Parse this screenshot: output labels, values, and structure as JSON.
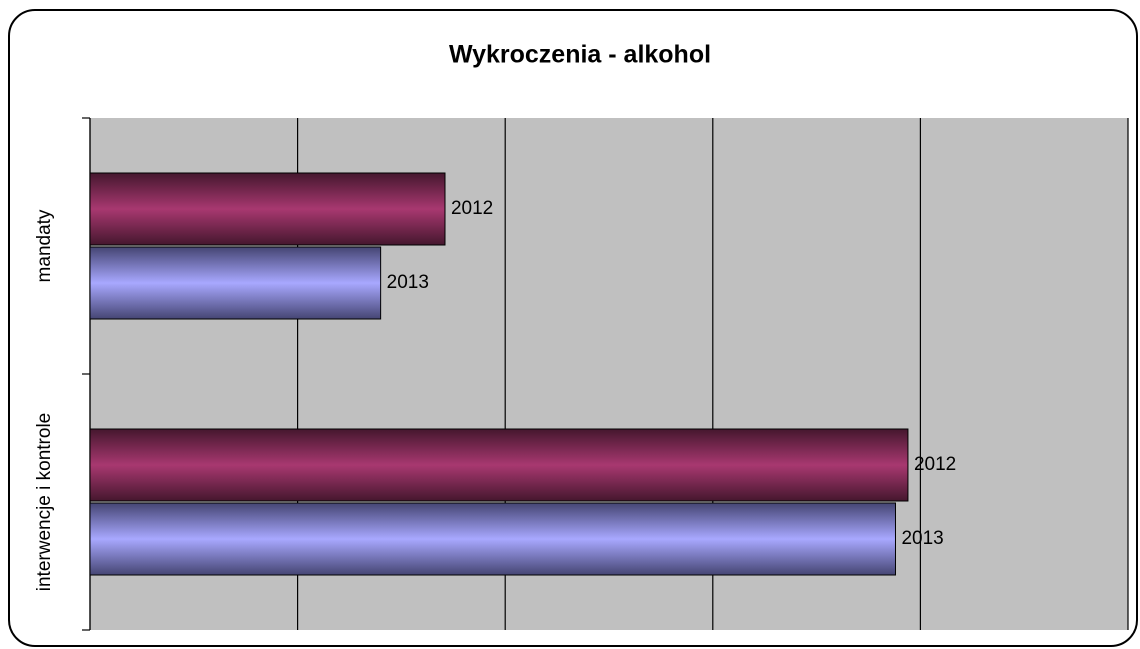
{
  "chart_data": {
    "type": "bar",
    "orientation": "horizontal",
    "title": "Wykroczenia - alkohol",
    "categories": [
      "mandaty",
      "interwencje i kontrole"
    ],
    "series": [
      {
        "name": "2012",
        "color": "#993366",
        "values": [
          1.71,
          3.94
        ]
      },
      {
        "name": "2013",
        "color": "#9999ff",
        "values": [
          1.4,
          3.88
        ]
      }
    ],
    "xlim": [
      0,
      5
    ],
    "xticks": [
      0,
      1,
      2,
      3,
      4,
      5
    ],
    "grid": true,
    "plot_background": "#c0c0c0"
  }
}
